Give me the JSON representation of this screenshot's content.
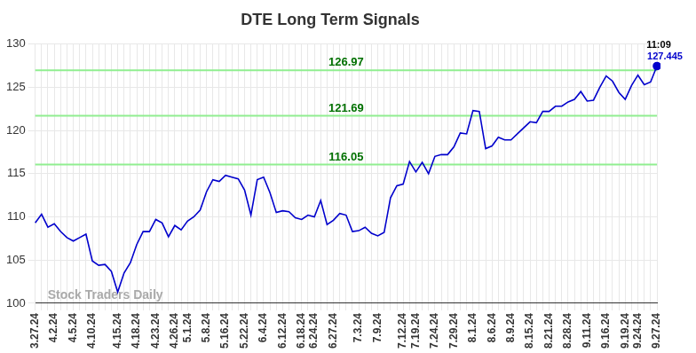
{
  "chart_data": {
    "type": "line",
    "title": "DTE Long Term Signals",
    "watermark": "Stock Traders Daily",
    "categories": [
      "3.27.24",
      null,
      null,
      "4.2.24",
      null,
      null,
      "4.5.24",
      null,
      null,
      "4.10.24",
      null,
      null,
      null,
      "4.15.24",
      null,
      null,
      "4.18.24",
      null,
      null,
      "4.23.24",
      null,
      null,
      "4.26.24",
      null,
      "5.1.24",
      null,
      null,
      "5.8.24",
      null,
      null,
      "5.16.24",
      null,
      null,
      "5.22.24",
      null,
      null,
      "6.4.24",
      null,
      null,
      "6.12.24",
      null,
      null,
      "6.18.24",
      null,
      "6.24.24",
      null,
      null,
      "6.27.24",
      null,
      null,
      null,
      "7.3.24",
      null,
      null,
      "7.9.24",
      null,
      null,
      null,
      "7.12.24",
      null,
      "7.19.24",
      null,
      null,
      "7.24.24",
      null,
      null,
      "7.29.24",
      null,
      null,
      "8.1.24",
      null,
      null,
      "8.6.24",
      null,
      null,
      "8.9.24",
      null,
      null,
      "8.15.24",
      null,
      null,
      "8.21.24",
      null,
      null,
      "8.28.24",
      null,
      null,
      "9.11.24",
      null,
      null,
      "9.16.24",
      null,
      null,
      "9.19.24",
      null,
      "9.24.24",
      null,
      null,
      "9.27.24"
    ],
    "series": [
      {
        "name": "DTE",
        "color": "#0000cc",
        "marker": "end",
        "values": [
          109.3,
          110.3,
          108.8,
          109.2,
          108.3,
          107.6,
          107.2,
          107.6,
          108.0,
          104.9,
          104.4,
          104.5,
          103.7,
          101.3,
          103.5,
          104.7,
          106.8,
          108.3,
          108.3,
          109.7,
          109.3,
          107.7,
          109.0,
          108.5,
          109.5,
          110.0,
          110.8,
          112.9,
          114.3,
          114.1,
          114.8,
          114.6,
          114.4,
          113.1,
          110.2,
          114.3,
          114.6,
          112.8,
          110.5,
          110.7,
          110.6,
          109.9,
          109.7,
          110.2,
          110.0,
          111.9,
          109.1,
          109.6,
          110.4,
          110.2,
          108.3,
          108.4,
          108.8,
          108.1,
          107.8,
          108.2,
          112.2,
          113.6,
          113.8,
          116.4,
          115.2,
          116.3,
          115.0,
          117.0,
          117.2,
          117.2,
          118.1,
          119.7,
          119.6,
          122.3,
          122.2,
          117.9,
          118.2,
          119.2,
          118.9,
          118.9,
          119.6,
          120.3,
          121.0,
          120.9,
          122.2,
          122.2,
          122.8,
          122.8,
          123.3,
          123.6,
          124.5,
          123.4,
          123.5,
          125.0,
          126.3,
          125.7,
          124.4,
          123.6,
          125.2,
          126.4,
          125.3,
          125.6,
          127.445
        ]
      }
    ],
    "last_point": {
      "time": "11:09",
      "value": 127.445,
      "value_label": "127.445",
      "color": "#0000cc"
    },
    "reference_lines": [
      {
        "value": 126.97,
        "label": "126.97",
        "color": "#90ee90",
        "label_color": "#007000"
      },
      {
        "value": 121.69,
        "label": "121.69",
        "color": "#90ee90",
        "label_color": "#007000"
      },
      {
        "value": 116.05,
        "label": "116.05",
        "color": "#90ee90",
        "label_color": "#007000"
      }
    ],
    "ylim": [
      100,
      130
    ],
    "yticks": [
      100,
      105,
      110,
      115,
      120,
      125,
      130
    ],
    "grid": true
  }
}
